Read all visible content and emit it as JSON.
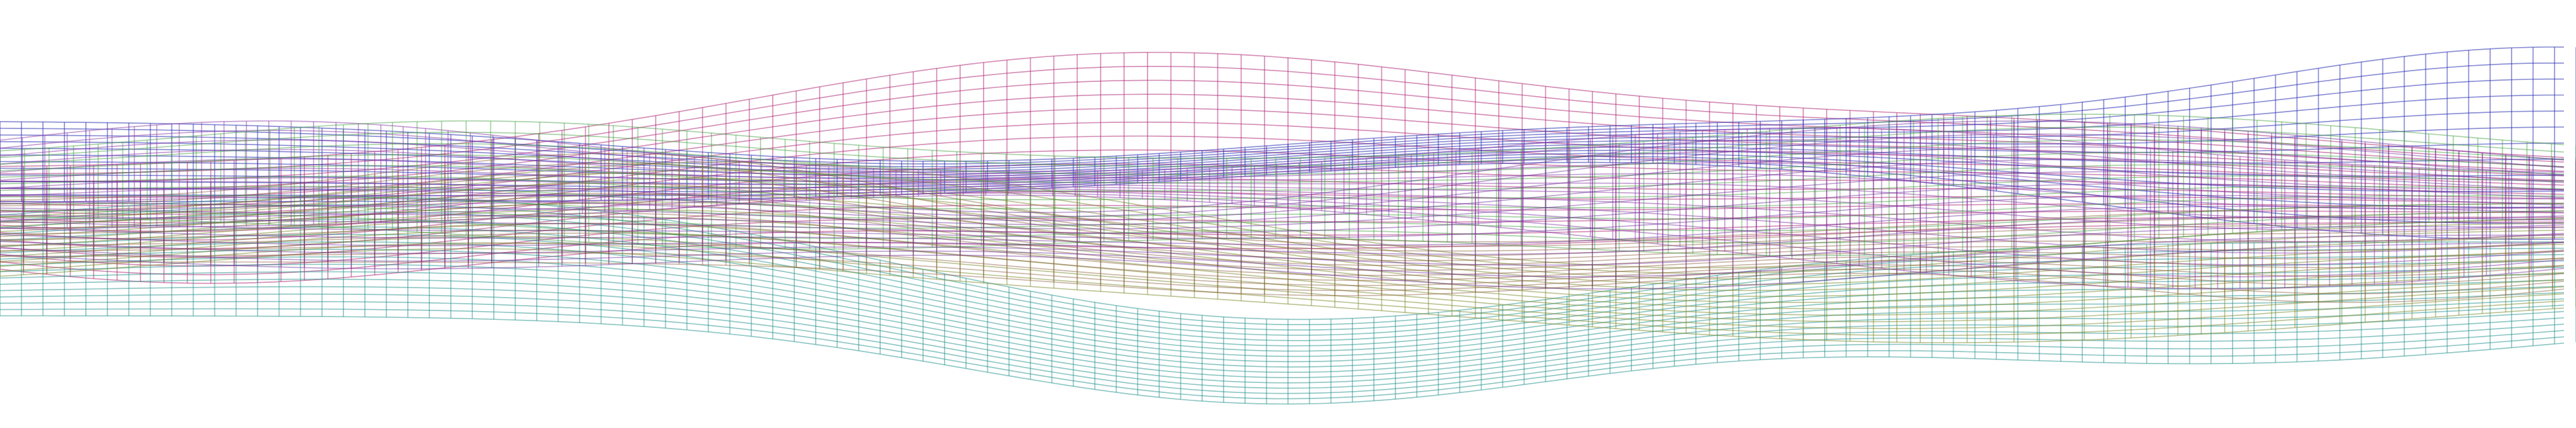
{
  "artwork": {
    "background": "#ffffff",
    "ribbons": [
      {
        "name": "magenta-peak-ribbon",
        "color": "#b0307a"
      },
      {
        "name": "blue-ribbon",
        "color": "#2a2fb0"
      },
      {
        "name": "teal-ribbon",
        "color": "#1d8f8a"
      },
      {
        "name": "olive-ribbon",
        "color": "#7a8a2a"
      },
      {
        "name": "violet-ribbon",
        "color": "#8a3aa8"
      },
      {
        "name": "brown-ribbon",
        "color": "#8a5a3a"
      },
      {
        "name": "green-ribbon",
        "color": "#3a9a3a"
      },
      {
        "name": "purple-ribbon",
        "color": "#6a2a9a"
      }
    ]
  }
}
